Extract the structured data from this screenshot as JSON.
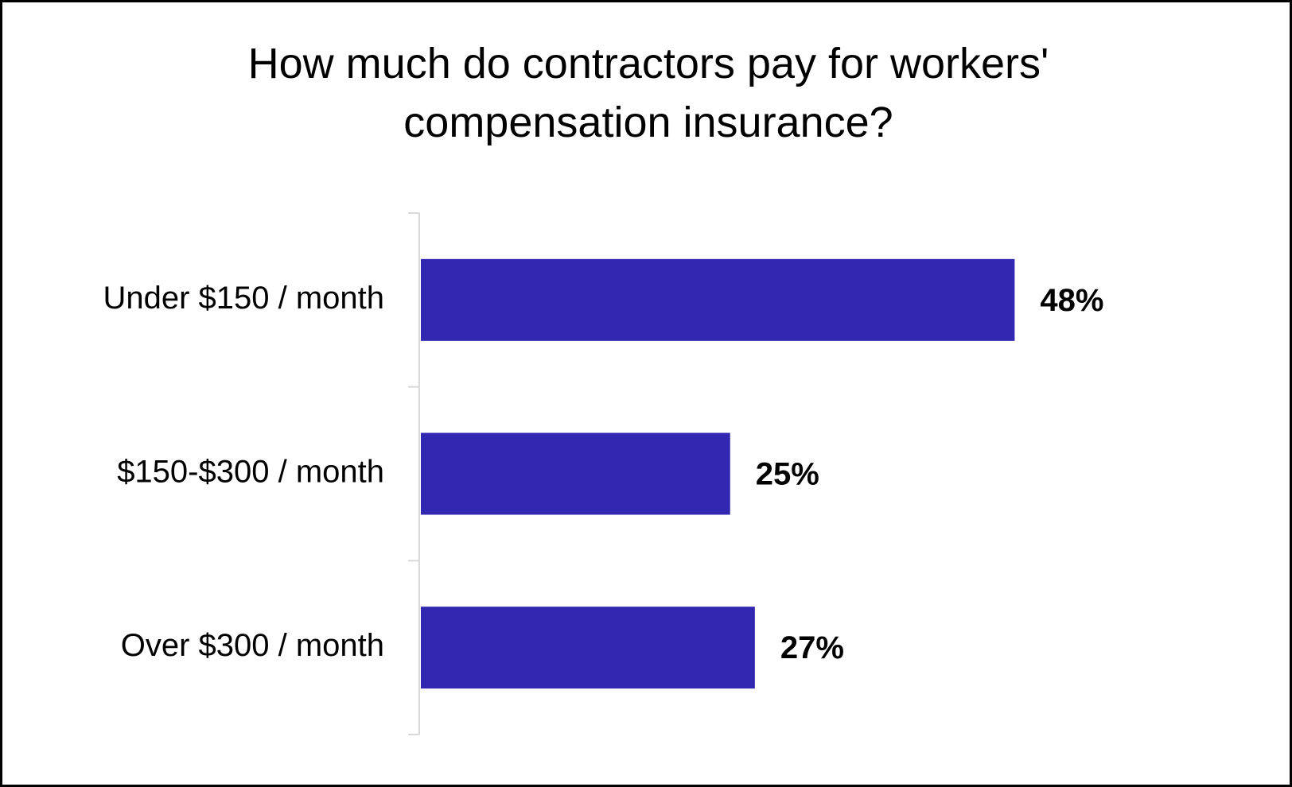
{
  "chart_data": {
    "type": "bar",
    "orientation": "horizontal",
    "title_lines": [
      "How much do contractors pay for workers'",
      "compensation insurance?"
    ],
    "categories": [
      "Under $150 / month",
      "$150-$300 / month",
      "Over $300 / month"
    ],
    "values": [
      48,
      25,
      27
    ],
    "data_labels": [
      "48%",
      "25%",
      "27%"
    ],
    "unit": "%",
    "xlim": [
      0,
      60
    ],
    "grid": false,
    "legend": "none",
    "colors": {
      "bar": "#3127B0",
      "axis": "#D9D9D9",
      "text": "#000000"
    }
  }
}
